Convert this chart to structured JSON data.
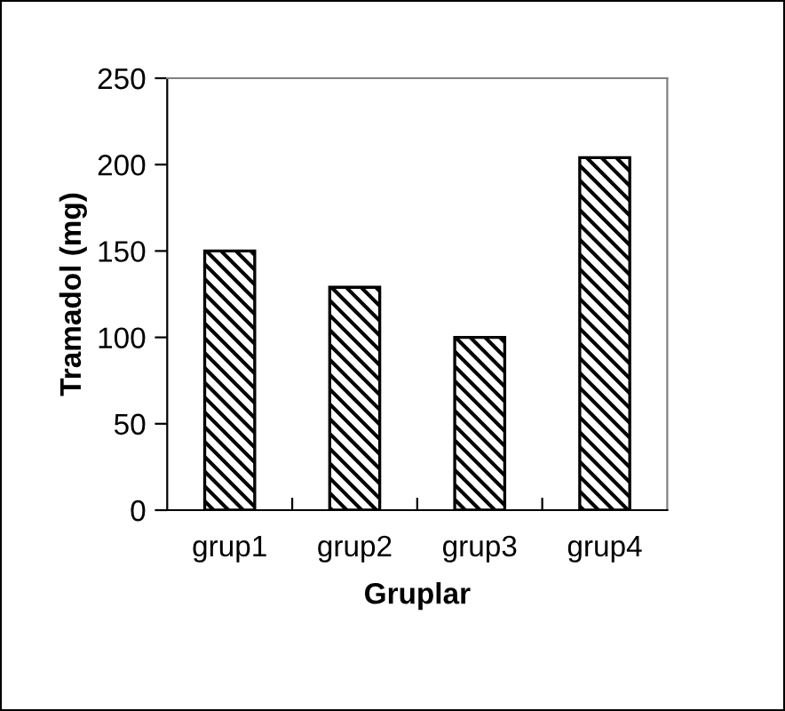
{
  "chart_data": {
    "type": "bar",
    "xlabel": "Gruplar",
    "ylabel": "Tramadol (mg)",
    "categories": [
      "grup1",
      "grup2",
      "grup3",
      "grup4"
    ],
    "values": [
      150,
      129,
      100,
      204
    ],
    "color": "#000000",
    "ylim": [
      0,
      250
    ],
    "yticks": [
      0,
      50,
      100,
      150,
      200,
      250
    ],
    "grid": false,
    "legend": false
  }
}
